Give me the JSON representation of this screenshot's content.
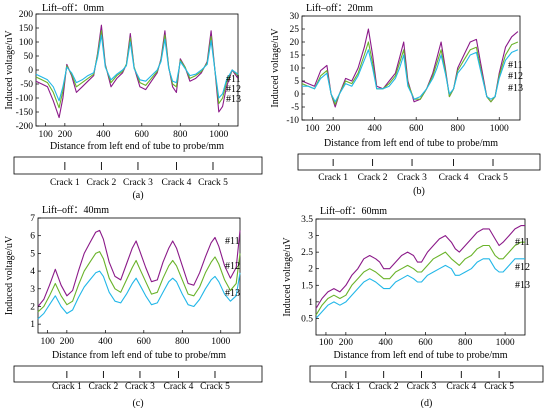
{
  "colors": {
    "s11": "#8b1a89",
    "s12": "#6ab32a",
    "s13": "#22b7e8",
    "axis": "#000000"
  },
  "common": {
    "xlabel": "Distance from left end of tube to probe/mm",
    "ylabel": "Induced voltage/uV",
    "crack_labels": [
      "Crack 1",
      "Crack 2",
      "Crack 3",
      "Crack 4",
      "Crack 5"
    ],
    "legend": [
      "#11",
      "#12",
      "#13"
    ]
  },
  "chart_data": [
    {
      "type": "line",
      "panel_label": "(a)",
      "title": "Lift–off：0mm",
      "xlabel": "Distance from left end of tube to probe/mm",
      "ylabel": "Induced voltage/uV",
      "xlim": [
        50,
        1100
      ],
      "ylim": [
        -200,
        200
      ],
      "xticks": [
        100,
        200,
        400,
        600,
        800,
        1000
      ],
      "yticks": [
        -200,
        -150,
        -100,
        -50,
        0,
        50,
        100,
        150,
        200
      ],
      "x": [
        50,
        80,
        110,
        140,
        170,
        190,
        210,
        235,
        260,
        290,
        320,
        350,
        370,
        390,
        410,
        440,
        470,
        500,
        520,
        540,
        560,
        590,
        620,
        650,
        680,
        700,
        720,
        740,
        760,
        780,
        800,
        825,
        850,
        880,
        910,
        940,
        960,
        980,
        1000,
        1020,
        1040,
        1070,
        1100
      ],
      "series": [
        {
          "name": "#11",
          "values": [
            -40,
            -50,
            -60,
            -110,
            -170,
            -100,
            20,
            -20,
            -80,
            -60,
            -40,
            -20,
            60,
            160,
            20,
            -60,
            -30,
            -10,
            20,
            130,
            10,
            -60,
            -70,
            -40,
            -10,
            40,
            140,
            10,
            -60,
            -80,
            40,
            10,
            -40,
            -30,
            -10,
            30,
            140,
            0,
            -150,
            -130,
            -60,
            0,
            -30
          ]
        },
        {
          "name": "#12",
          "values": [
            -25,
            -35,
            -45,
            -80,
            -135,
            -75,
            15,
            -15,
            -60,
            -45,
            -30,
            -15,
            55,
            140,
            15,
            -45,
            -20,
            -5,
            20,
            115,
            10,
            -45,
            -55,
            -30,
            -5,
            35,
            125,
            10,
            -50,
            -60,
            35,
            10,
            -30,
            -20,
            -5,
            25,
            120,
            0,
            -120,
            -100,
            -45,
            0,
            -20
          ]
        },
        {
          "name": "#13",
          "values": [
            -15,
            -25,
            -35,
            -60,
            -110,
            -60,
            10,
            -10,
            -45,
            -35,
            -20,
            -10,
            45,
            125,
            10,
            -35,
            -15,
            0,
            15,
            100,
            5,
            -35,
            -40,
            -20,
            0,
            30,
            110,
            5,
            -40,
            -45,
            30,
            5,
            -20,
            -15,
            0,
            20,
            105,
            0,
            -100,
            -85,
            -35,
            0,
            -15
          ]
        }
      ]
    },
    {
      "type": "line",
      "panel_label": "(b)",
      "title": "Lift–off：20mm",
      "xlabel": "Distance from left end of tube to probe/mm",
      "ylabel": "Induced voltage/uV",
      "xlim": [
        50,
        1100
      ],
      "ylim": [
        -10,
        30
      ],
      "xticks": [
        100,
        200,
        400,
        600,
        800,
        1000
      ],
      "yticks": [
        -10,
        -5,
        0,
        5,
        10,
        15,
        20,
        25,
        30
      ],
      "x": [
        50,
        80,
        110,
        140,
        170,
        190,
        210,
        230,
        260,
        290,
        320,
        350,
        370,
        390,
        410,
        440,
        470,
        500,
        520,
        540,
        560,
        590,
        620,
        650,
        680,
        700,
        720,
        740,
        760,
        780,
        800,
        830,
        860,
        890,
        910,
        940,
        960,
        980,
        1000,
        1030,
        1060,
        1090
      ],
      "series": [
        {
          "name": "#11",
          "values": [
            5,
            4,
            3,
            9,
            11,
            0,
            -5,
            0,
            6,
            5,
            10,
            18,
            25,
            15,
            3,
            2,
            5,
            8,
            14,
            20,
            5,
            -3,
            -2,
            2,
            8,
            14,
            20,
            10,
            -1,
            2,
            10,
            15,
            20,
            21,
            12,
            -1,
            -3,
            -1,
            8,
            18,
            22,
            24
          ]
        },
        {
          "name": "#12",
          "values": [
            4,
            3,
            2,
            7,
            9,
            0,
            -4,
            0,
            5,
            4,
            8,
            15,
            20,
            12,
            2,
            2,
            4,
            7,
            12,
            17,
            4,
            -2,
            -2,
            2,
            7,
            12,
            17,
            9,
            -1,
            2,
            9,
            13,
            17,
            18,
            10,
            -1,
            -3,
            -1,
            7,
            15,
            19,
            20
          ]
        },
        {
          "name": "#13",
          "values": [
            3,
            3,
            2,
            6,
            8,
            0,
            -3,
            0,
            4,
            3,
            7,
            13,
            17,
            10,
            2,
            2,
            3,
            6,
            10,
            15,
            3,
            -2,
            -1,
            2,
            6,
            10,
            15,
            8,
            0,
            2,
            8,
            11,
            15,
            16,
            9,
            -1,
            -2,
            -1,
            6,
            13,
            16,
            17
          ]
        }
      ]
    },
    {
      "type": "line",
      "panel_label": "(c)",
      "title": "Lift–off：40mm",
      "xlabel": "Distance from left end of tube to probe/mm",
      "ylabel": "Induced voltage/uV",
      "xlim": [
        50,
        1100
      ],
      "ylim": [
        0.5,
        7
      ],
      "xticks": [
        100,
        200,
        400,
        600,
        800,
        1000
      ],
      "yticks": [
        1,
        2,
        3,
        4,
        5,
        6,
        7
      ],
      "x": [
        50,
        80,
        110,
        140,
        170,
        200,
        230,
        260,
        290,
        320,
        350,
        370,
        390,
        420,
        450,
        480,
        510,
        540,
        560,
        580,
        610,
        640,
        670,
        700,
        730,
        750,
        770,
        800,
        830,
        860,
        890,
        920,
        950,
        970,
        990,
        1020,
        1050,
        1080,
        1100
      ],
      "series": [
        {
          "name": "#11",
          "values": [
            2.0,
            2.4,
            3.2,
            4.1,
            3.2,
            2.6,
            2.9,
            4.0,
            5.0,
            5.6,
            6.2,
            6.3,
            5.8,
            4.5,
            3.7,
            3.5,
            4.4,
            5.3,
            5.7,
            5.1,
            4.2,
            3.4,
            3.5,
            4.5,
            5.3,
            5.7,
            5.3,
            4.3,
            3.3,
            3.2,
            3.9,
            4.8,
            5.6,
            5.9,
            5.4,
            4.3,
            3.6,
            4.2,
            6.3
          ]
        },
        {
          "name": "#12",
          "values": [
            1.7,
            2.0,
            2.6,
            3.3,
            2.6,
            2.1,
            2.3,
            3.2,
            4.0,
            4.5,
            5.0,
            5.1,
            4.7,
            3.6,
            3.0,
            2.8,
            3.5,
            4.2,
            4.6,
            4.1,
            3.4,
            2.7,
            2.8,
            3.6,
            4.3,
            4.6,
            4.3,
            3.5,
            2.7,
            2.6,
            3.1,
            3.9,
            4.5,
            4.8,
            4.4,
            3.5,
            2.9,
            3.3,
            5.0
          ]
        },
        {
          "name": "#13",
          "values": [
            1.3,
            1.6,
            2.1,
            2.6,
            2.0,
            1.6,
            1.8,
            2.5,
            3.1,
            3.5,
            3.9,
            4.0,
            3.7,
            2.8,
            2.3,
            2.2,
            2.7,
            3.3,
            3.6,
            3.2,
            2.6,
            2.1,
            2.2,
            2.8,
            3.4,
            3.6,
            3.4,
            2.7,
            2.1,
            2.0,
            2.4,
            3.0,
            3.5,
            3.7,
            3.4,
            2.7,
            2.3,
            2.6,
            3.9
          ]
        }
      ]
    },
    {
      "type": "line",
      "panel_label": "(d)",
      "title": "Lift–off：60mm",
      "xlabel": "Distance from left end of tube to probe/mm",
      "ylabel": "Induced voltage/uV",
      "xlim": [
        50,
        1100
      ],
      "ylim": [
        0,
        3.5
      ],
      "xticks": [
        100,
        200,
        400,
        600,
        800,
        1000
      ],
      "yticks": [
        0.5,
        1,
        1.5,
        2,
        2.5,
        3,
        3.5
      ],
      "x": [
        50,
        80,
        110,
        140,
        170,
        200,
        230,
        260,
        290,
        320,
        350,
        370,
        390,
        420,
        450,
        480,
        510,
        540,
        560,
        580,
        610,
        640,
        670,
        700,
        730,
        750,
        770,
        800,
        830,
        860,
        890,
        920,
        950,
        970,
        990,
        1020,
        1050,
        1080,
        1100
      ],
      "series": [
        {
          "name": "#11",
          "values": [
            0.8,
            1.1,
            1.3,
            1.4,
            1.3,
            1.5,
            1.8,
            2.0,
            2.3,
            2.4,
            2.3,
            2.2,
            2.0,
            2.0,
            2.2,
            2.4,
            2.5,
            2.4,
            2.2,
            2.2,
            2.5,
            2.7,
            2.9,
            3.0,
            2.8,
            2.6,
            2.5,
            2.7,
            2.9,
            3.1,
            3.2,
            3.2,
            2.9,
            2.7,
            2.8,
            3.0,
            3.2,
            3.3,
            3.3
          ]
        },
        {
          "name": "#12",
          "values": [
            0.6,
            0.9,
            1.1,
            1.2,
            1.1,
            1.2,
            1.5,
            1.7,
            1.9,
            2.0,
            1.9,
            1.8,
            1.7,
            1.7,
            1.9,
            2.0,
            2.1,
            2.0,
            1.9,
            1.9,
            2.1,
            2.3,
            2.4,
            2.5,
            2.3,
            2.2,
            2.1,
            2.3,
            2.4,
            2.6,
            2.7,
            2.7,
            2.4,
            2.3,
            2.3,
            2.5,
            2.7,
            2.8,
            2.8
          ]
        },
        {
          "name": "#13",
          "values": [
            0.5,
            0.7,
            0.9,
            1.0,
            0.9,
            1.0,
            1.2,
            1.4,
            1.6,
            1.7,
            1.6,
            1.5,
            1.4,
            1.4,
            1.6,
            1.7,
            1.8,
            1.7,
            1.6,
            1.6,
            1.8,
            1.9,
            2.0,
            2.1,
            2.0,
            1.8,
            1.8,
            1.9,
            2.0,
            2.2,
            2.3,
            2.3,
            2.0,
            1.9,
            1.9,
            2.1,
            2.3,
            2.3,
            2.3
          ]
        }
      ]
    }
  ]
}
